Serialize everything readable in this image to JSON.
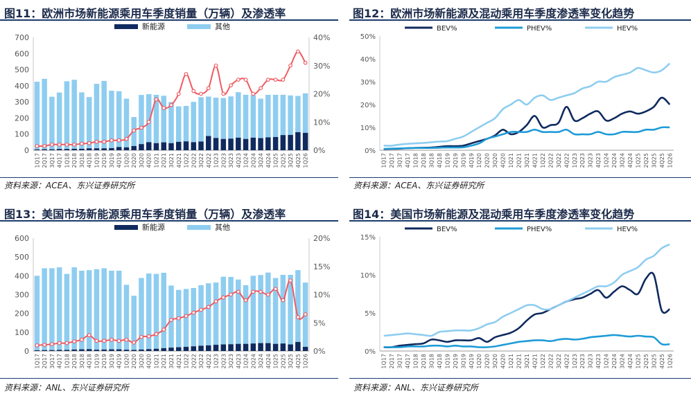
{
  "colors": {
    "ev": "#0f2a5e",
    "other": "#8ecdf0",
    "pen": "#f05a62",
    "bev": "#0f2a5e",
    "phev": "#1e9bd7",
    "hev": "#8ecdf0",
    "rule": "#1b3a6b"
  },
  "quarters_eu": [
    "1Q17",
    "2Q17",
    "3Q17",
    "4Q17",
    "1Q18",
    "2Q18",
    "3Q18",
    "4Q18",
    "1Q19",
    "2Q19",
    "3Q19",
    "4Q19",
    "1Q20",
    "2Q20",
    "3Q20",
    "4Q20",
    "1Q21",
    "2Q21",
    "3Q21",
    "4Q21",
    "1Q22",
    "2Q22",
    "3Q22",
    "4Q22",
    "1Q23",
    "2Q23",
    "3Q23",
    "4Q23",
    "1Q24",
    "2Q24",
    "3Q24",
    "4Q24",
    "1Q25",
    "2Q25",
    "3Q25",
    "4Q25",
    "1Q26"
  ],
  "quarters_us": [
    "1Q17",
    "2Q17",
    "3Q17",
    "4Q17",
    "1Q18",
    "2Q18",
    "3Q18",
    "4Q18",
    "1Q19",
    "2Q19",
    "3Q19",
    "4Q19",
    "1Q20",
    "2Q20",
    "3Q20",
    "4Q20",
    "1Q21",
    "2Q21",
    "3Q21",
    "4Q21",
    "1Q22",
    "2Q22",
    "3Q22",
    "4Q22",
    "1Q23",
    "2Q23",
    "3Q23",
    "4Q23",
    "1Q24",
    "2Q24",
    "3Q24",
    "4Q24",
    "1Q25",
    "2Q25",
    "3Q25",
    "4Q25",
    "1Q26"
  ],
  "fig11": {
    "title": "图11：欧洲市场新能源乘用车季度销量（万辆）及渗透率",
    "source": "资料来源：ACEA、东兴证券研究所",
    "legend": [
      "新能源",
      "其他"
    ]
  },
  "fig12": {
    "title": "图12：欧洲市场新能源及混动乘用车季度渗透率变化趋势",
    "source": "资料来源：ACEA、东兴证券研究所",
    "legend": [
      "BEV%",
      "PHEV%",
      "HEV%"
    ]
  },
  "fig13": {
    "title": "图13：美国市场新能源乘用车季度销量（万辆）及渗透率",
    "source": "资料来源：ANL、东兴证券研究所",
    "legend": [
      "新能源",
      "其他"
    ]
  },
  "fig14": {
    "title": "图14：美国市场新能源及混动乘用车季度渗透率变化趋势",
    "source": "资料来源：ANL、东兴证券研究所",
    "legend": [
      "BEV%",
      "PHEV%",
      "HEV%"
    ]
  },
  "chart_data": [
    {
      "id": "fig11",
      "type": "bar",
      "stacked": true,
      "categories_ref": "quarters_eu",
      "ylim": [
        0,
        700
      ],
      "yticks": [
        0,
        100,
        200,
        300,
        400,
        500,
        600,
        700
      ],
      "y2lim": [
        0,
        40
      ],
      "y2ticks": [
        "0%",
        "10%",
        "20%",
        "30%",
        "40%"
      ],
      "series": [
        {
          "name": "新能源",
          "values": [
            5,
            6,
            6,
            8,
            8,
            9,
            9,
            12,
            12,
            12,
            13,
            20,
            18,
            26,
            38,
            50,
            44,
            49,
            44,
            52,
            55,
            50,
            54,
            88,
            76,
            70,
            72,
            78,
            70,
            78,
            75,
            80,
            82,
            94,
            95,
            112,
            108
          ]
        },
        {
          "name": "其他",
          "values": [
            420,
            437,
            326,
            350,
            420,
            428,
            350,
            318,
            400,
            418,
            356,
            346,
            302,
            180,
            305,
            298,
            300,
            289,
            255,
            220,
            220,
            250,
            275,
            245,
            250,
            254,
            262,
            282,
            274,
            264,
            245,
            264,
            262,
            250,
            245,
            225,
            245
          ]
        },
        {
          "name": "pen",
          "axis": "right",
          "values": [
            1.5,
            1.5,
            2,
            2,
            2,
            2,
            2.3,
            2.5,
            3,
            3,
            3.5,
            3.5,
            4,
            7,
            8,
            10,
            18,
            15,
            16,
            20,
            27,
            21,
            20,
            22,
            30,
            20,
            23,
            25,
            25,
            20,
            22,
            25,
            25,
            25,
            30,
            35,
            31
          ]
        }
      ],
      "grid": false,
      "legend_position": "top"
    },
    {
      "id": "fig12",
      "type": "line",
      "categories_ref": "quarters_eu",
      "ylim": [
        0,
        50
      ],
      "yticks": [
        "0%",
        "10%",
        "20%",
        "30%",
        "40%",
        "50%"
      ],
      "series": [
        {
          "name": "BEV%",
          "values": [
            0.5,
            0.6,
            0.7,
            0.9,
            1.0,
            1.1,
            1.2,
            1.5,
            1.8,
            1.8,
            2.0,
            3.0,
            4.0,
            5.0,
            6.5,
            9.0,
            7.0,
            8.0,
            11.0,
            15.0,
            10.0,
            11.0,
            12.0,
            19.0,
            13.0,
            14.0,
            16.0,
            17.0,
            13.0,
            14.0,
            16.0,
            17.0,
            16.0,
            17.0,
            19.0,
            23.0,
            20.0
          ]
        },
        {
          "name": "PHEV%",
          "values": [
            0.6,
            0.7,
            0.8,
            0.9,
            1.0,
            1.0,
            1.0,
            1.1,
            1.2,
            1.2,
            1.3,
            2.0,
            3.0,
            5.0,
            6.0,
            7.0,
            8.0,
            8.0,
            8.0,
            9.0,
            8.0,
            8.0,
            8.0,
            9.0,
            7.0,
            7.0,
            7.0,
            8.0,
            7.0,
            7.0,
            8.0,
            8.0,
            8.0,
            9.0,
            9.0,
            10.0,
            10.0
          ]
        },
        {
          "name": "HEV%",
          "values": [
            2.0,
            2.0,
            2.5,
            2.8,
            3.0,
            3.2,
            3.5,
            3.8,
            4.0,
            5.0,
            6.0,
            8.0,
            10.0,
            12.0,
            14.0,
            18.0,
            20.0,
            22.0,
            20.0,
            23.0,
            24.0,
            22.0,
            23.0,
            24.0,
            25.0,
            27.0,
            28.0,
            30.0,
            30.0,
            32.0,
            33.0,
            34.0,
            36.0,
            35.0,
            34.0,
            35.0,
            38.0
          ]
        }
      ],
      "grid": false,
      "legend_position": "top"
    },
    {
      "id": "fig13",
      "type": "bar",
      "stacked": true,
      "categories_ref": "quarters_us",
      "ylim": [
        0,
        600
      ],
      "yticks": [
        0,
        100,
        200,
        300,
        400,
        500,
        600
      ],
      "y2lim": [
        0,
        20
      ],
      "y2ticks": [
        "0%",
        "5%",
        "10%",
        "15%",
        "20%"
      ],
      "series": [
        {
          "name": "新能源",
          "values": [
            4,
            5,
            5,
            6,
            6,
            8,
            9,
            10,
            7,
            8,
            9,
            9,
            7,
            6,
            8,
            10,
            12,
            15,
            18,
            20,
            22,
            25,
            28,
            30,
            33,
            35,
            36,
            38,
            38,
            40,
            42,
            42,
            38,
            40,
            35,
            48,
            22
          ]
        },
        {
          "name": "其他",
          "values": [
            396,
            435,
            435,
            439,
            404,
            437,
            418,
            420,
            428,
            432,
            418,
            418,
            345,
            288,
            380,
            402,
            398,
            401,
            330,
            305,
            308,
            310,
            322,
            330,
            331,
            360,
            358,
            342,
            312,
            360,
            362,
            375,
            350,
            365,
            370,
            382,
            342
          ]
        },
        {
          "name": "pen",
          "axis": "right",
          "values": [
            1.0,
            1.1,
            1.2,
            1.4,
            1.4,
            1.7,
            2.0,
            2.8,
            1.8,
            1.8,
            2.0,
            1.8,
            2.0,
            1.5,
            2.5,
            2.6,
            3.0,
            3.8,
            5.5,
            5.8,
            6.2,
            6.8,
            7.3,
            7.8,
            8.8,
            9.5,
            10.0,
            10.5,
            9.0,
            10.5,
            10.5,
            10.0,
            11.0,
            9.0,
            12.5,
            6.0,
            6.5
          ]
        }
      ],
      "grid": false,
      "legend_position": "top"
    },
    {
      "id": "fig14",
      "type": "line",
      "categories_ref": "quarters_us",
      "ylim": [
        0,
        15
      ],
      "yticks": [
        "0%",
        "5%",
        "10%",
        "15%"
      ],
      "series": [
        {
          "name": "BEV%",
          "values": [
            0.5,
            0.5,
            0.7,
            0.8,
            0.9,
            1.0,
            1.5,
            1.4,
            1.2,
            1.4,
            1.4,
            1.4,
            1.7,
            1.2,
            1.8,
            2.1,
            2.4,
            3.0,
            4.0,
            4.8,
            5.0,
            5.5,
            6.0,
            6.5,
            6.8,
            7.0,
            7.5,
            8.0,
            7.0,
            7.8,
            8.5,
            8.0,
            7.5,
            9.5,
            10.0,
            5.3,
            5.5
          ]
        },
        {
          "name": "PHEV%",
          "values": [
            0.5,
            0.5,
            0.5,
            0.6,
            0.6,
            0.6,
            0.7,
            0.7,
            0.6,
            0.7,
            0.6,
            0.6,
            0.5,
            0.5,
            0.6,
            0.8,
            1.0,
            1.2,
            1.3,
            1.4,
            1.4,
            1.3,
            1.5,
            1.6,
            1.5,
            1.6,
            1.8,
            1.9,
            2.0,
            2.1,
            2.0,
            1.9,
            2.0,
            1.9,
            1.8,
            0.9,
            0.9
          ]
        },
        {
          "name": "HEV%",
          "values": [
            2.0,
            2.1,
            2.2,
            2.3,
            2.2,
            2.1,
            2.0,
            2.5,
            2.6,
            2.7,
            2.7,
            2.7,
            3.0,
            3.5,
            3.8,
            4.5,
            5.0,
            5.5,
            6.0,
            6.0,
            5.5,
            5.5,
            6.0,
            6.5,
            7.0,
            7.5,
            8.0,
            8.5,
            8.5,
            9.0,
            10.0,
            10.5,
            11.0,
            12.0,
            12.5,
            13.5,
            14.0
          ]
        }
      ],
      "grid": false,
      "legend_position": "top"
    }
  ]
}
